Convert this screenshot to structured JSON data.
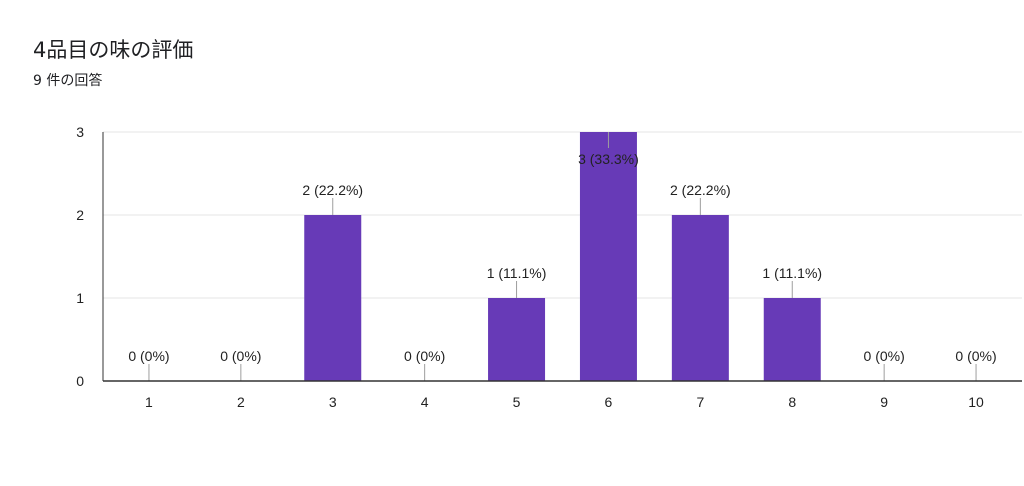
{
  "header": {
    "title": "4品目の味の評価",
    "subtitle": "9 件の回答"
  },
  "chart_data": {
    "type": "bar",
    "categories": [
      "1",
      "2",
      "3",
      "4",
      "5",
      "6",
      "7",
      "8",
      "9",
      "10"
    ],
    "values": [
      0,
      0,
      2,
      0,
      1,
      3,
      2,
      1,
      0,
      0
    ],
    "data_labels": [
      "0 (0%)",
      "0 (0%)",
      "2 (22.2%)",
      "0 (0%)",
      "1 (11.1%)",
      "3 (33.3%)",
      "2 (22.2%)",
      "1 (11.1%)",
      "0 (0%)",
      "0 (0%)"
    ],
    "yticks": [
      0,
      1,
      2,
      3
    ],
    "ylim": [
      0,
      3
    ],
    "grid": true,
    "bar_color": "#673ab7",
    "title": "4品目の味の評価",
    "xlabel": "",
    "ylabel": ""
  }
}
